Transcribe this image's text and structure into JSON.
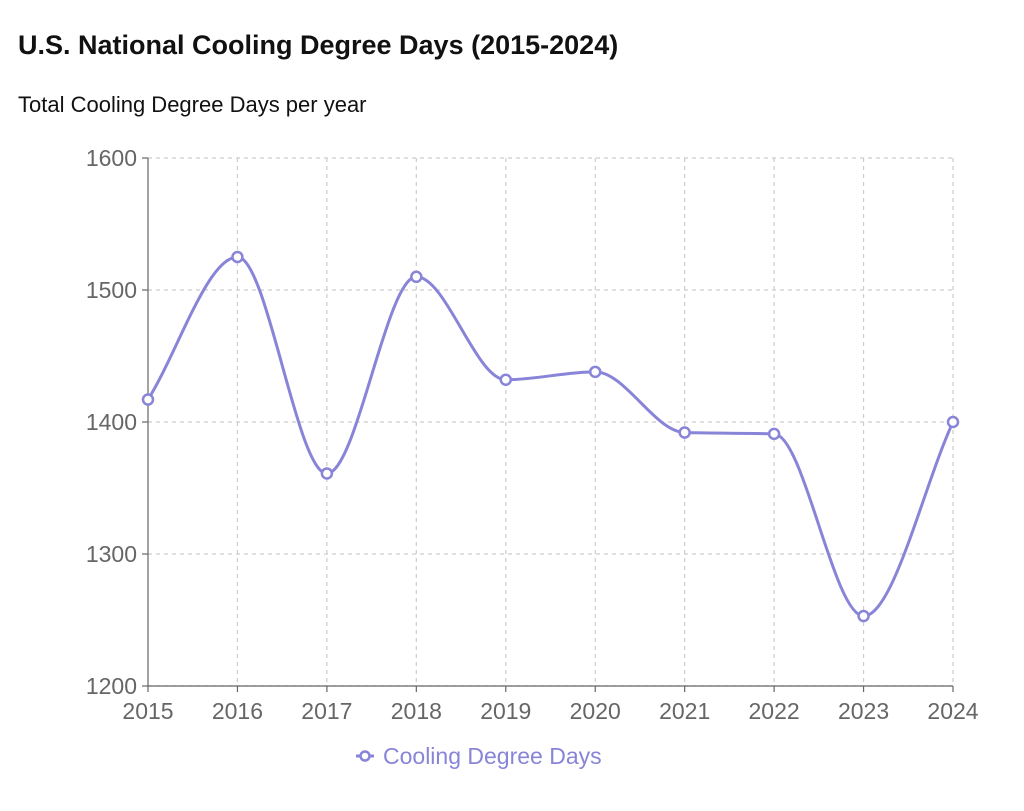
{
  "chart_data": {
    "type": "line",
    "title": "U.S. National Cooling Degree Days (2015-2024)",
    "subtitle": "Total Cooling Degree Days per year",
    "xlabel": "",
    "ylabel": "",
    "categories": [
      "2015",
      "2016",
      "2017",
      "2018",
      "2019",
      "2020",
      "2021",
      "2022",
      "2023",
      "2024"
    ],
    "series": [
      {
        "name": "Cooling Degree Days",
        "color": "#8884d8",
        "values": [
          1417,
          1525,
          1361,
          1510,
          1432,
          1438,
          1392,
          1391,
          1253,
          1400
        ]
      }
    ],
    "ylim": [
      1200,
      1600
    ],
    "yticks": [
      "1200",
      "1300",
      "1400",
      "1500",
      "1600"
    ],
    "grid": true,
    "legend": "bottom-center",
    "curve": "smooth"
  }
}
